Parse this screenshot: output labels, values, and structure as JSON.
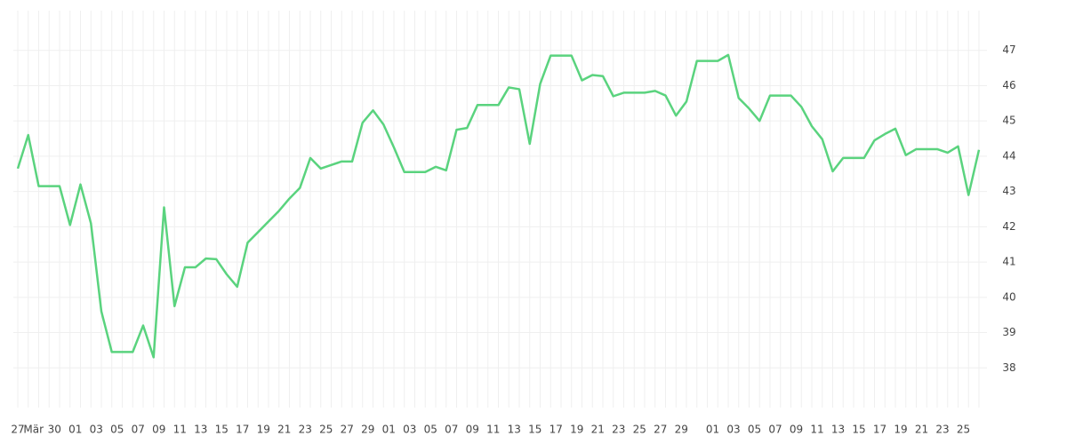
{
  "chart_data": {
    "type": "line",
    "categories": [
      "27",
      "Mär",
      null,
      "30",
      null,
      "01",
      null,
      "03",
      null,
      "05",
      null,
      "07",
      null,
      "09",
      null,
      "11",
      null,
      "13",
      null,
      "15",
      null,
      "17",
      null,
      "19",
      null,
      "21",
      null,
      "23",
      null,
      "25",
      null,
      "27",
      null,
      "29",
      null,
      "01",
      null,
      "03",
      null,
      "05",
      null,
      "07",
      null,
      "09",
      null,
      "11",
      null,
      "13",
      null,
      "15",
      null,
      "17",
      null,
      "19",
      null,
      "21",
      null,
      "23",
      null,
      "25",
      null,
      "27",
      null,
      "29",
      null,
      null,
      "01",
      null,
      "03",
      null,
      "05",
      null,
      "07",
      null,
      "09",
      null,
      "11",
      null,
      "13",
      null,
      "15",
      null,
      "17",
      null,
      "19",
      null,
      "21",
      null,
      "23",
      null,
      "25",
      null,
      null
    ],
    "values": [
      43.65,
      44.6,
      43.15,
      43.15,
      43.15,
      42.05,
      43.2,
      42.1,
      39.6,
      38.45,
      38.45,
      38.45,
      39.2,
      38.3,
      42.55,
      39.75,
      40.85,
      40.85,
      41.1,
      41.08,
      40.65,
      40.3,
      41.55,
      41.85,
      42.15,
      42.45,
      42.8,
      43.1,
      43.95,
      43.65,
      43.75,
      43.85,
      43.85,
      44.95,
      45.3,
      44.9,
      44.25,
      43.55,
      43.55,
      43.55,
      43.7,
      43.6,
      44.75,
      44.8,
      45.45,
      45.45,
      45.45,
      45.95,
      45.9,
      44.35,
      46.05,
      46.85,
      46.85,
      46.85,
      46.15,
      46.3,
      46.27,
      45.7,
      45.8,
      45.8,
      45.8,
      45.85,
      45.72,
      45.15,
      45.55,
      46.7,
      46.7,
      46.7,
      46.87,
      45.65,
      45.35,
      45.0,
      45.72,
      45.72,
      45.72,
      45.4,
      44.85,
      44.48,
      43.57,
      43.95,
      43.95,
      43.95,
      44.45,
      44.63,
      44.78,
      44.03,
      44.2,
      44.2,
      44.2,
      44.1,
      44.28,
      42.9,
      44.18
    ],
    "color": "#5ad37e",
    "ylim": [
      37,
      48
    ],
    "yticks": [
      38,
      39,
      40,
      41,
      42,
      43,
      44,
      45,
      46,
      47
    ],
    "grid": true
  }
}
